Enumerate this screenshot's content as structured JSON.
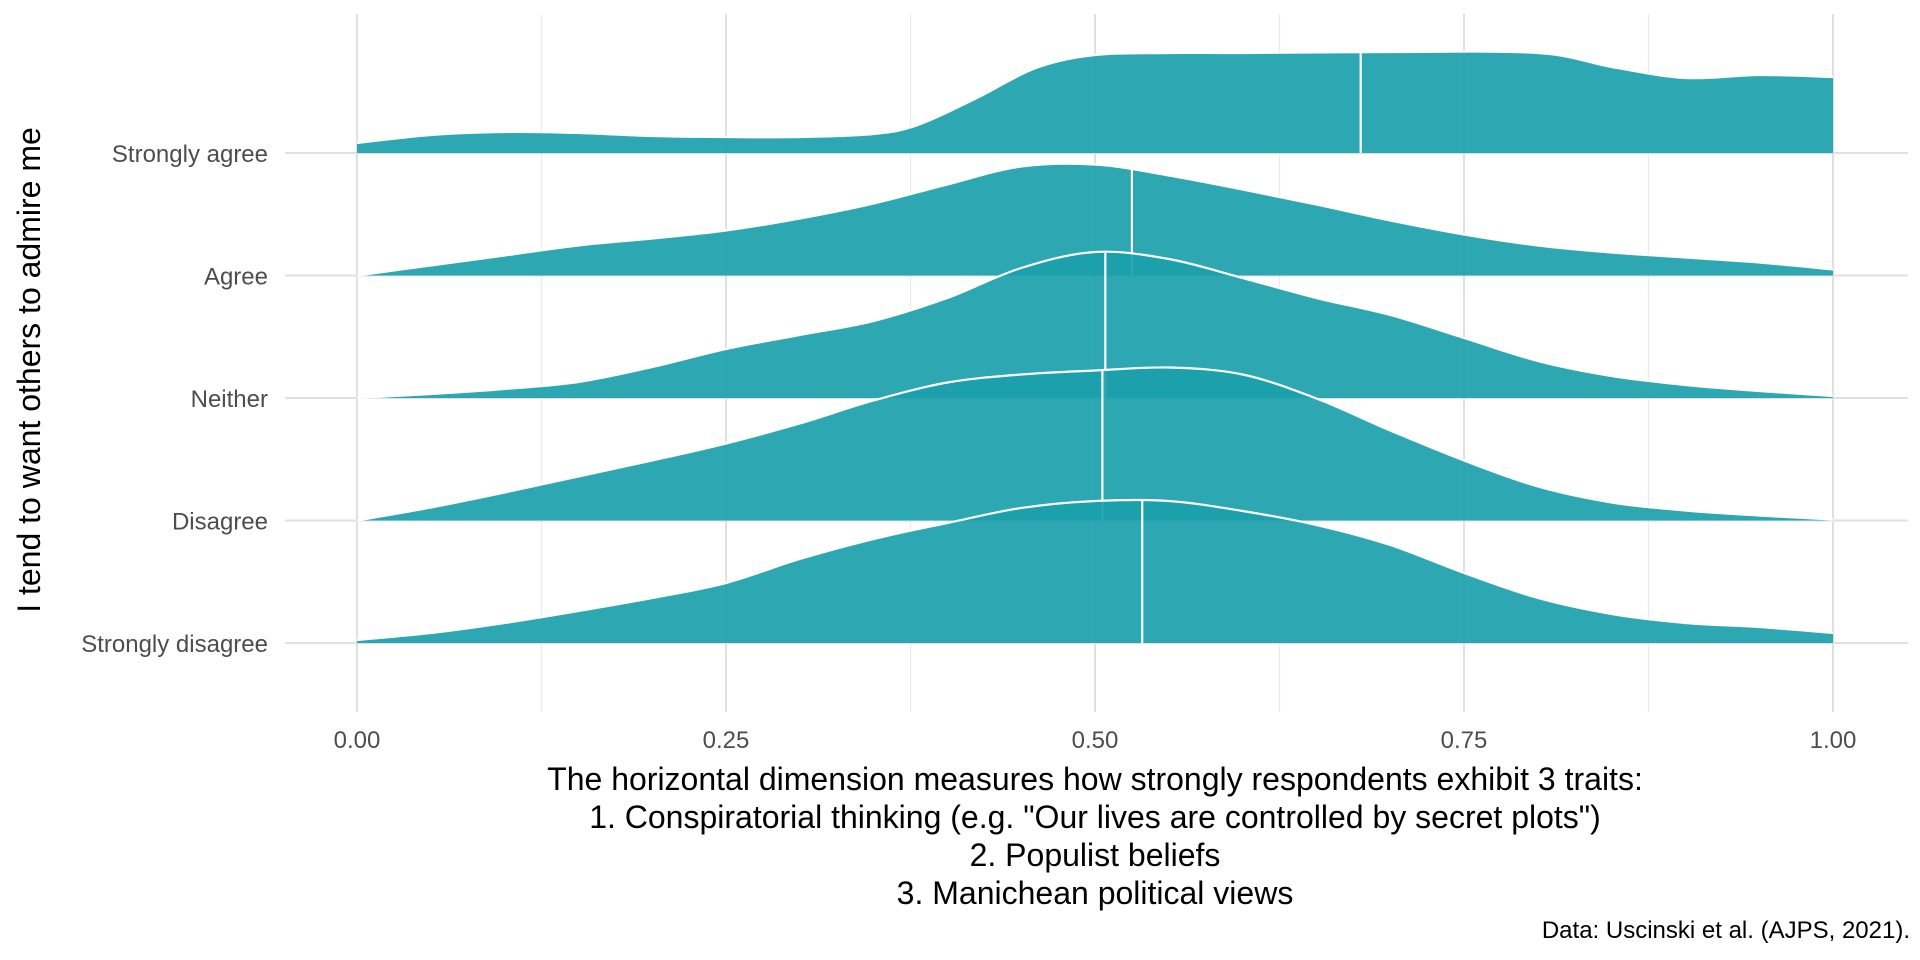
{
  "chart_data": {
    "type": "ridgeline",
    "title": "",
    "ylabel": "I tend to want others to admire me",
    "xlabel_lines": [
      "The horizontal dimension measures how strongly respondents exhibit 3 traits:",
      "1. Conspiratorial thinking (e.g. \"Our lives are controlled by secret plots\")",
      "2. Populist beliefs",
      "3. Manichean political views"
    ],
    "caption": "Data: Uscinski et al. (AJPS, 2021).",
    "xlim": [
      0,
      1
    ],
    "x_ticks": [
      0,
      0.25,
      0.5,
      0.75,
      1
    ],
    "x_tick_labels": [
      "0.00",
      "0.25",
      "0.50",
      "0.75",
      "1.00"
    ],
    "grid": true,
    "fill_color": "#1b9fab",
    "line_color": "#ffffff",
    "categories": [
      "Strongly agree",
      "Agree",
      "Neither",
      "Disagree",
      "Strongly disagree"
    ],
    "series": [
      {
        "name": "Strongly agree",
        "median": 0.68,
        "x": [
          0,
          0.05,
          0.1,
          0.15,
          0.2,
          0.25,
          0.3,
          0.35,
          0.38,
          0.42,
          0.46,
          0.5,
          0.55,
          0.6,
          0.7,
          0.8,
          0.85,
          0.9,
          0.95,
          1.0
        ],
        "density": [
          0.1,
          0.18,
          0.21,
          0.2,
          0.17,
          0.16,
          0.16,
          0.19,
          0.28,
          0.55,
          0.85,
          0.98,
          1.0,
          1.0,
          1.01,
          1.0,
          0.86,
          0.75,
          0.78,
          0.76
        ]
      },
      {
        "name": "Agree",
        "median": 0.525,
        "x": [
          0,
          0.05,
          0.1,
          0.15,
          0.2,
          0.25,
          0.3,
          0.35,
          0.4,
          0.45,
          0.5,
          0.55,
          0.6,
          0.65,
          0.7,
          0.75,
          0.8,
          0.85,
          0.9,
          0.95,
          1.0
        ],
        "density": [
          0.0,
          0.1,
          0.2,
          0.3,
          0.37,
          0.45,
          0.57,
          0.72,
          0.91,
          1.09,
          1.11,
          1.0,
          0.86,
          0.71,
          0.55,
          0.41,
          0.3,
          0.23,
          0.18,
          0.13,
          0.06
        ]
      },
      {
        "name": "Neither",
        "median": 0.507,
        "x": [
          0,
          0.05,
          0.1,
          0.15,
          0.2,
          0.25,
          0.3,
          0.35,
          0.4,
          0.45,
          0.5,
          0.55,
          0.6,
          0.65,
          0.7,
          0.75,
          0.8,
          0.85,
          0.9,
          0.95,
          1.0
        ],
        "density": [
          0.0,
          0.04,
          0.09,
          0.16,
          0.31,
          0.49,
          0.63,
          0.77,
          1.0,
          1.3,
          1.46,
          1.39,
          1.2,
          1.0,
          0.83,
          0.6,
          0.37,
          0.22,
          0.13,
          0.07,
          0.02
        ]
      },
      {
        "name": "Disagree",
        "median": 0.505,
        "x": [
          0,
          0.05,
          0.1,
          0.15,
          0.2,
          0.25,
          0.3,
          0.35,
          0.4,
          0.45,
          0.5,
          0.55,
          0.6,
          0.65,
          0.7,
          0.75,
          0.8,
          0.85,
          0.9,
          0.95,
          1.0
        ],
        "density": [
          0.0,
          0.13,
          0.28,
          0.44,
          0.6,
          0.77,
          0.97,
          1.2,
          1.38,
          1.46,
          1.5,
          1.53,
          1.46,
          1.22,
          0.9,
          0.6,
          0.34,
          0.18,
          0.1,
          0.05,
          0.01
        ]
      },
      {
        "name": "Strongly disagree",
        "median": 0.532,
        "x": [
          0,
          0.05,
          0.1,
          0.15,
          0.2,
          0.25,
          0.3,
          0.35,
          0.4,
          0.45,
          0.5,
          0.55,
          0.6,
          0.65,
          0.7,
          0.75,
          0.8,
          0.85,
          0.9,
          0.95,
          1.0
        ],
        "density": [
          0.03,
          0.1,
          0.2,
          0.32,
          0.45,
          0.6,
          0.84,
          1.04,
          1.2,
          1.35,
          1.42,
          1.42,
          1.32,
          1.18,
          0.98,
          0.7,
          0.45,
          0.29,
          0.2,
          0.16,
          0.1
        ]
      }
    ]
  }
}
